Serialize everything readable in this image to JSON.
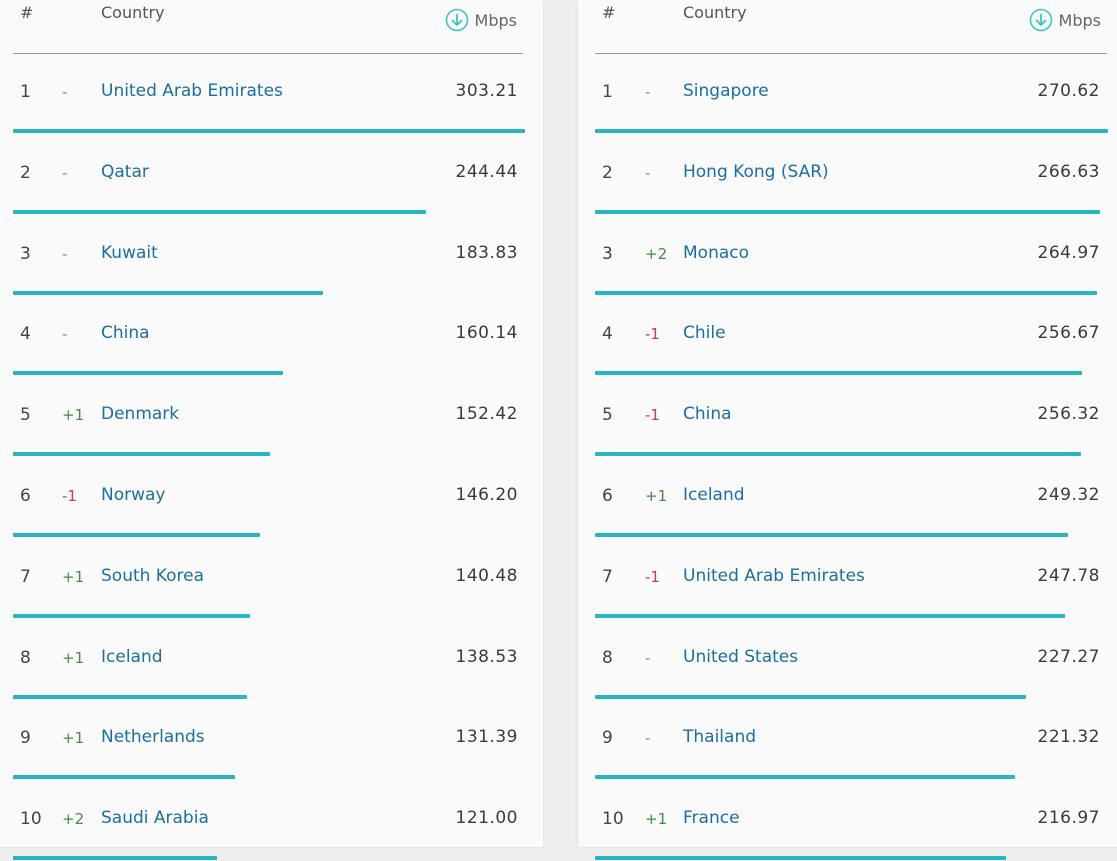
{
  "colors": {
    "bar": "#27b6c0",
    "country_link": "#1a6fa0",
    "change_up": "#3f8f3f",
    "change_down": "#d0384b"
  },
  "left_table": {
    "header": {
      "rank": "#",
      "country": "Country",
      "unit": "Mbps",
      "unit_icon": "download-arrow-icon"
    },
    "rows": [
      {
        "rank": "1",
        "change": "-",
        "country": "United Arab Emirates",
        "speed": "303.21",
        "speed_value": 303.21
      },
      {
        "rank": "2",
        "change": "-",
        "country": "Qatar",
        "speed": "244.44",
        "speed_value": 244.44
      },
      {
        "rank": "3",
        "change": "-",
        "country": "Kuwait",
        "speed": "183.83",
        "speed_value": 183.83
      },
      {
        "rank": "4",
        "change": "-",
        "country": "China",
        "speed": "160.14",
        "speed_value": 160.14
      },
      {
        "rank": "5",
        "change": "+1",
        "country": "Denmark",
        "speed": "152.42",
        "speed_value": 152.42
      },
      {
        "rank": "6",
        "change": "-1",
        "country": "Norway",
        "speed": "146.20",
        "speed_value": 146.2
      },
      {
        "rank": "7",
        "change": "+1",
        "country": "South Korea",
        "speed": "140.48",
        "speed_value": 140.48
      },
      {
        "rank": "8",
        "change": "+1",
        "country": "Iceland",
        "speed": "138.53",
        "speed_value": 138.53
      },
      {
        "rank": "9",
        "change": "+1",
        "country": "Netherlands",
        "speed": "131.39",
        "speed_value": 131.39
      },
      {
        "rank": "10",
        "change": "+2",
        "country": "Saudi Arabia",
        "speed": "121.00",
        "speed_value": 121.0
      }
    ]
  },
  "right_table": {
    "header": {
      "rank": "#",
      "country": "Country",
      "unit": "Mbps",
      "unit_icon": "download-arrow-icon"
    },
    "rows": [
      {
        "rank": "1",
        "change": "-",
        "country": "Singapore",
        "speed": "270.62",
        "speed_value": 270.62
      },
      {
        "rank": "2",
        "change": "-",
        "country": "Hong Kong (SAR)",
        "speed": "266.63",
        "speed_value": 266.63
      },
      {
        "rank": "3",
        "change": "+2",
        "country": "Monaco",
        "speed": "264.97",
        "speed_value": 264.97
      },
      {
        "rank": "4",
        "change": "-1",
        "country": "Chile",
        "speed": "256.67",
        "speed_value": 256.67
      },
      {
        "rank": "5",
        "change": "-1",
        "country": "China",
        "speed": "256.32",
        "speed_value": 256.32
      },
      {
        "rank": "6",
        "change": "+1",
        "country": "Iceland",
        "speed": "249.32",
        "speed_value": 249.32
      },
      {
        "rank": "7",
        "change": "-1",
        "country": "United Arab Emirates",
        "speed": "247.78",
        "speed_value": 247.78
      },
      {
        "rank": "8",
        "change": "-",
        "country": "United States",
        "speed": "227.27",
        "speed_value": 227.27
      },
      {
        "rank": "9",
        "change": "-",
        "country": "Thailand",
        "speed": "221.32",
        "speed_value": 221.32
      },
      {
        "rank": "10",
        "change": "+1",
        "country": "France",
        "speed": "216.97",
        "speed_value": 216.97
      }
    ]
  }
}
